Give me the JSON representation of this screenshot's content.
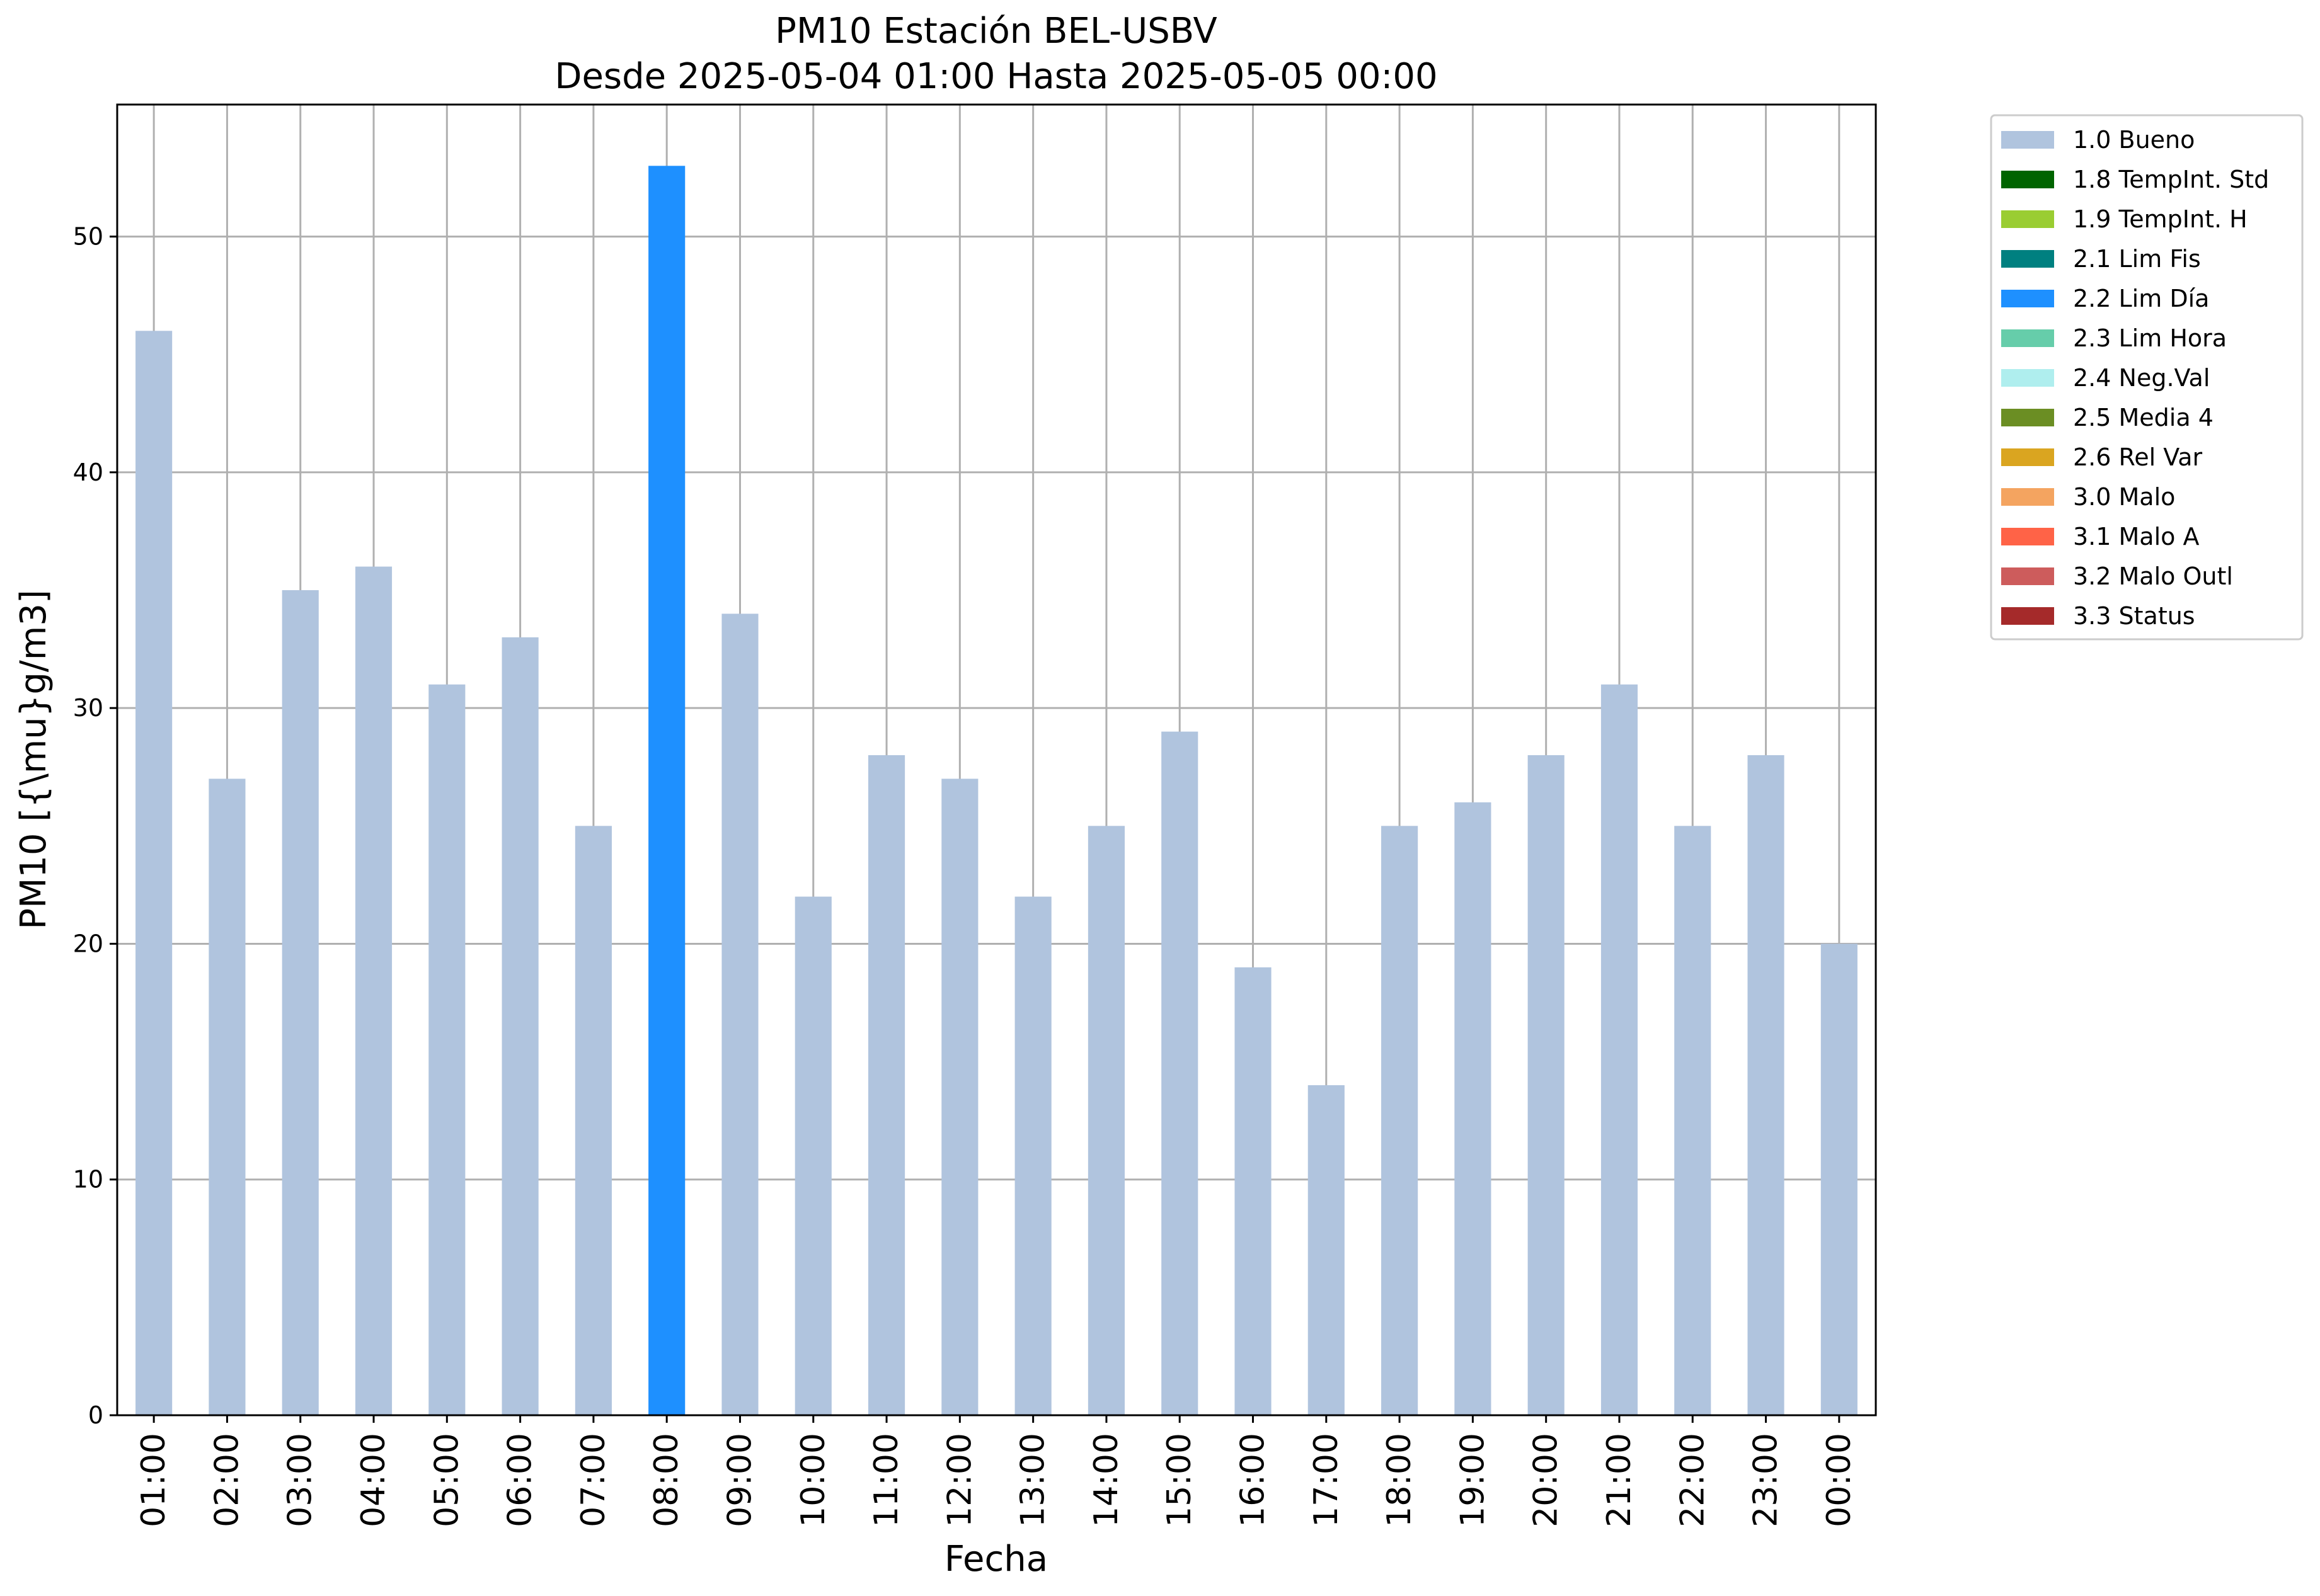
{
  "chart_data": {
    "type": "bar",
    "title": "PM10 Estación BEL-USBV",
    "subtitle": "Desde 2025-05-04 01:00 Hasta 2025-05-05 00:00",
    "xlabel": "Fecha",
    "ylabel": "PM10 [{\\mu}g/m3]",
    "ylim": [
      0,
      55.6
    ],
    "yticks": [
      0,
      10,
      20,
      30,
      40,
      50
    ],
    "grid": true,
    "legend_position": "outside top-right",
    "categories": [
      "01:00",
      "02:00",
      "03:00",
      "04:00",
      "05:00",
      "06:00",
      "07:00",
      "08:00",
      "09:00",
      "10:00",
      "11:00",
      "12:00",
      "13:00",
      "14:00",
      "15:00",
      "16:00",
      "17:00",
      "18:00",
      "19:00",
      "20:00",
      "21:00",
      "22:00",
      "23:00",
      "00:00"
    ],
    "values": [
      46,
      27,
      35,
      36,
      31,
      33,
      25,
      53,
      34,
      22,
      28,
      27,
      22,
      25,
      29,
      19,
      14,
      25,
      26,
      28,
      31,
      25,
      28,
      20
    ],
    "value_flags": [
      "1.0 Bueno",
      "1.0 Bueno",
      "1.0 Bueno",
      "1.0 Bueno",
      "1.0 Bueno",
      "1.0 Bueno",
      "1.0 Bueno",
      "2.2 Lim Día",
      "1.0 Bueno",
      "1.0 Bueno",
      "1.0 Bueno",
      "1.0 Bueno",
      "1.0 Bueno",
      "1.0 Bueno",
      "1.0 Bueno",
      "1.0 Bueno",
      "1.0 Bueno",
      "1.0 Bueno",
      "1.0 Bueno",
      "1.0 Bueno",
      "1.0 Bueno",
      "1.0 Bueno",
      "1.0 Bueno",
      "1.0 Bueno"
    ],
    "legend": [
      {
        "label": "1.0 Bueno",
        "color": "#b0c4de"
      },
      {
        "label": "1.8 TempInt. Std",
        "color": "#006400"
      },
      {
        "label": "1.9 TempInt. H",
        "color": "#9acd32"
      },
      {
        "label": "2.1 Lim Fis",
        "color": "#008080"
      },
      {
        "label": "2.2 Lim Día",
        "color": "#1e90ff"
      },
      {
        "label": "2.3 Lim Hora",
        "color": "#66cdaa"
      },
      {
        "label": "2.4 Neg.Val",
        "color": "#afeeee"
      },
      {
        "label": "2.5 Media 4",
        "color": "#6b8e23"
      },
      {
        "label": "2.6 Rel Var",
        "color": "#daa520"
      },
      {
        "label": "3.0 Malo",
        "color": "#f4a460"
      },
      {
        "label": "3.1 Malo A",
        "color": "#ff6347"
      },
      {
        "label": "3.2 Malo Outl",
        "color": "#cd5c5c"
      },
      {
        "label": "3.3 Status",
        "color": "#a52a2a"
      }
    ]
  }
}
